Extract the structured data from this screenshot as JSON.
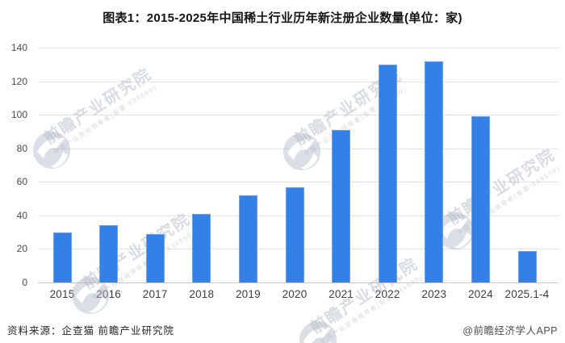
{
  "page": {
    "title": "图表1：2015-2025年中国稀土行业历年新注册企业数量(单位：家)",
    "footer": {
      "source": "资料来源：企查猫 前瞻产业研究院",
      "credit": "@前瞻经济学人APP"
    }
  },
  "watermark": {
    "text": "前瞻产业研究院",
    "subtext": "中国产业咨询领导者(股票:839599)",
    "logo_icon": "qianzhan-logo"
  },
  "chart_data": {
    "type": "bar",
    "title": "图表1：2015-2025年中国稀土行业历年新注册企业数量(单位：家)",
    "unit": "家",
    "categories": [
      "2015",
      "2016",
      "2017",
      "2018",
      "2019",
      "2020",
      "2021",
      "2022",
      "2023",
      "2024",
      "2025.1-4"
    ],
    "values": [
      30,
      34,
      29,
      41,
      52,
      57,
      91,
      130,
      132,
      99,
      19
    ],
    "xlabel": "",
    "ylabel": "",
    "ylim": [
      0,
      140
    ],
    "ytick_step": 20,
    "yticks": [
      0,
      20,
      40,
      60,
      80,
      100,
      120,
      140
    ],
    "grid": true,
    "legend": "none",
    "bar_color": "#3380E6",
    "gridline_color": "#e3e3e5"
  }
}
